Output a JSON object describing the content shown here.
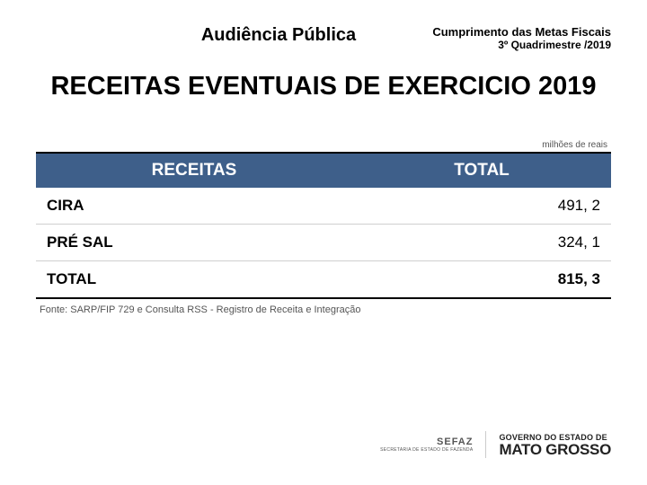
{
  "header": {
    "left_title": "Audiência Pública",
    "right_line1": "Cumprimento das Metas Fiscais",
    "right_line2": "3º Quadrimestre /2019"
  },
  "main_title": "RECEITAS EVENTUAIS DE EXERCICIO 2019",
  "units_caption": "milhões de reais",
  "table": {
    "header_bg": "#3e5f8a",
    "header_fg": "#ffffff",
    "columns": [
      "RECEITAS",
      "TOTAL"
    ],
    "rows": [
      {
        "label": "CIRA",
        "value": "491, 2"
      },
      {
        "label": "PRÉ SAL",
        "value": "324, 1"
      }
    ],
    "total": {
      "label": "TOTAL",
      "value": "815, 3"
    },
    "border_color": "#d0d0d0",
    "rule_color": "#000000",
    "cell_fontsize": 17,
    "header_fontsize": 19
  },
  "source_note": "Fonte: SARP/FIP 729 e Consulta RSS - Registro de Receita e Integração",
  "footer": {
    "sefaz_label": "SEFAZ",
    "sefaz_sub": "SECRETARIA DE ESTADO DE FAZENDA",
    "gov_line1": "GOVERNO DO ESTADO DE",
    "gov_line2": "MATO GROSSO"
  },
  "colors": {
    "background": "#ffffff",
    "text_primary": "#000000",
    "text_muted": "#555555",
    "header_band": "#3e5f8a"
  }
}
